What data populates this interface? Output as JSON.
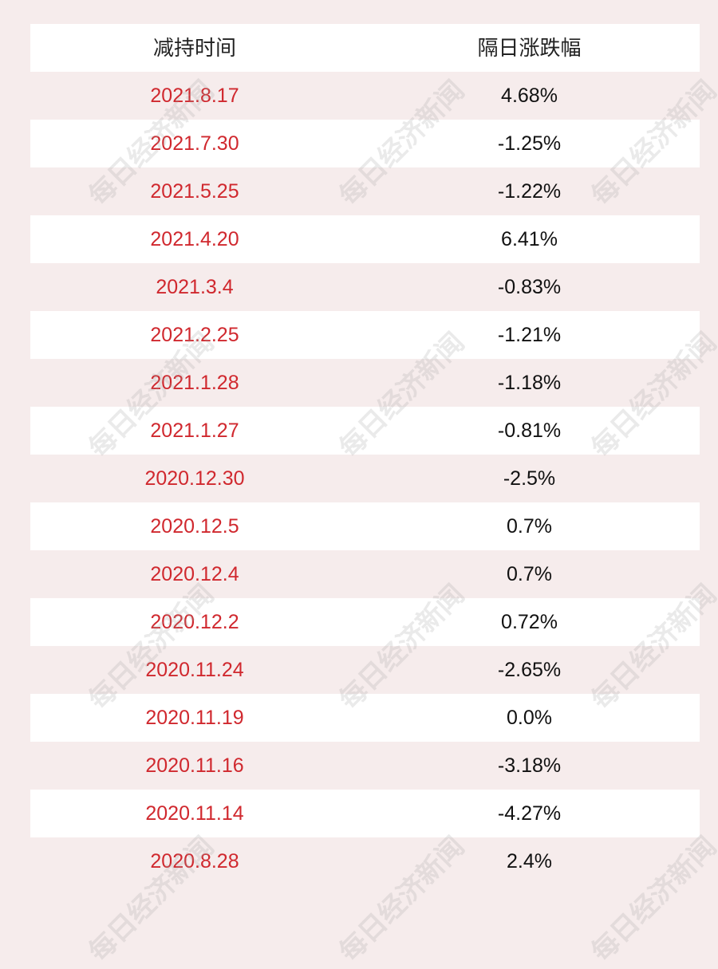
{
  "header": {
    "col_date": "减持时间",
    "col_change": "隔日涨跌幅"
  },
  "rows": [
    {
      "date": "2021.8.17",
      "change": "4.68%"
    },
    {
      "date": "2021.7.30",
      "change": "-1.25%"
    },
    {
      "date": "2021.5.25",
      "change": "-1.22%"
    },
    {
      "date": "2021.4.20",
      "change": "6.41%"
    },
    {
      "date": "2021.3.4",
      "change": "-0.83%"
    },
    {
      "date": "2021.2.25",
      "change": "-1.21%"
    },
    {
      "date": "2021.1.28",
      "change": "-1.18%"
    },
    {
      "date": "2021.1.27",
      "change": "-0.81%"
    },
    {
      "date": "2020.12.30",
      "change": "-2.5%"
    },
    {
      "date": "2020.12.5",
      "change": "0.7%"
    },
    {
      "date": "2020.12.4",
      "change": "0.7%"
    },
    {
      "date": "2020.12.2",
      "change": "0.72%"
    },
    {
      "date": "2020.11.24",
      "change": "-2.65%"
    },
    {
      "date": "2020.11.19",
      "change": "0.0%"
    },
    {
      "date": "2020.11.16",
      "change": "-3.18%"
    },
    {
      "date": "2020.11.14",
      "change": "-4.27%"
    },
    {
      "date": "2020.8.28",
      "change": "2.4%"
    }
  ],
  "watermark": "每日经济新闻",
  "colors": {
    "date_text": "#d0282e",
    "value_text": "#111111",
    "row_alt": "#f6ecec",
    "row_white": "#ffffff"
  }
}
